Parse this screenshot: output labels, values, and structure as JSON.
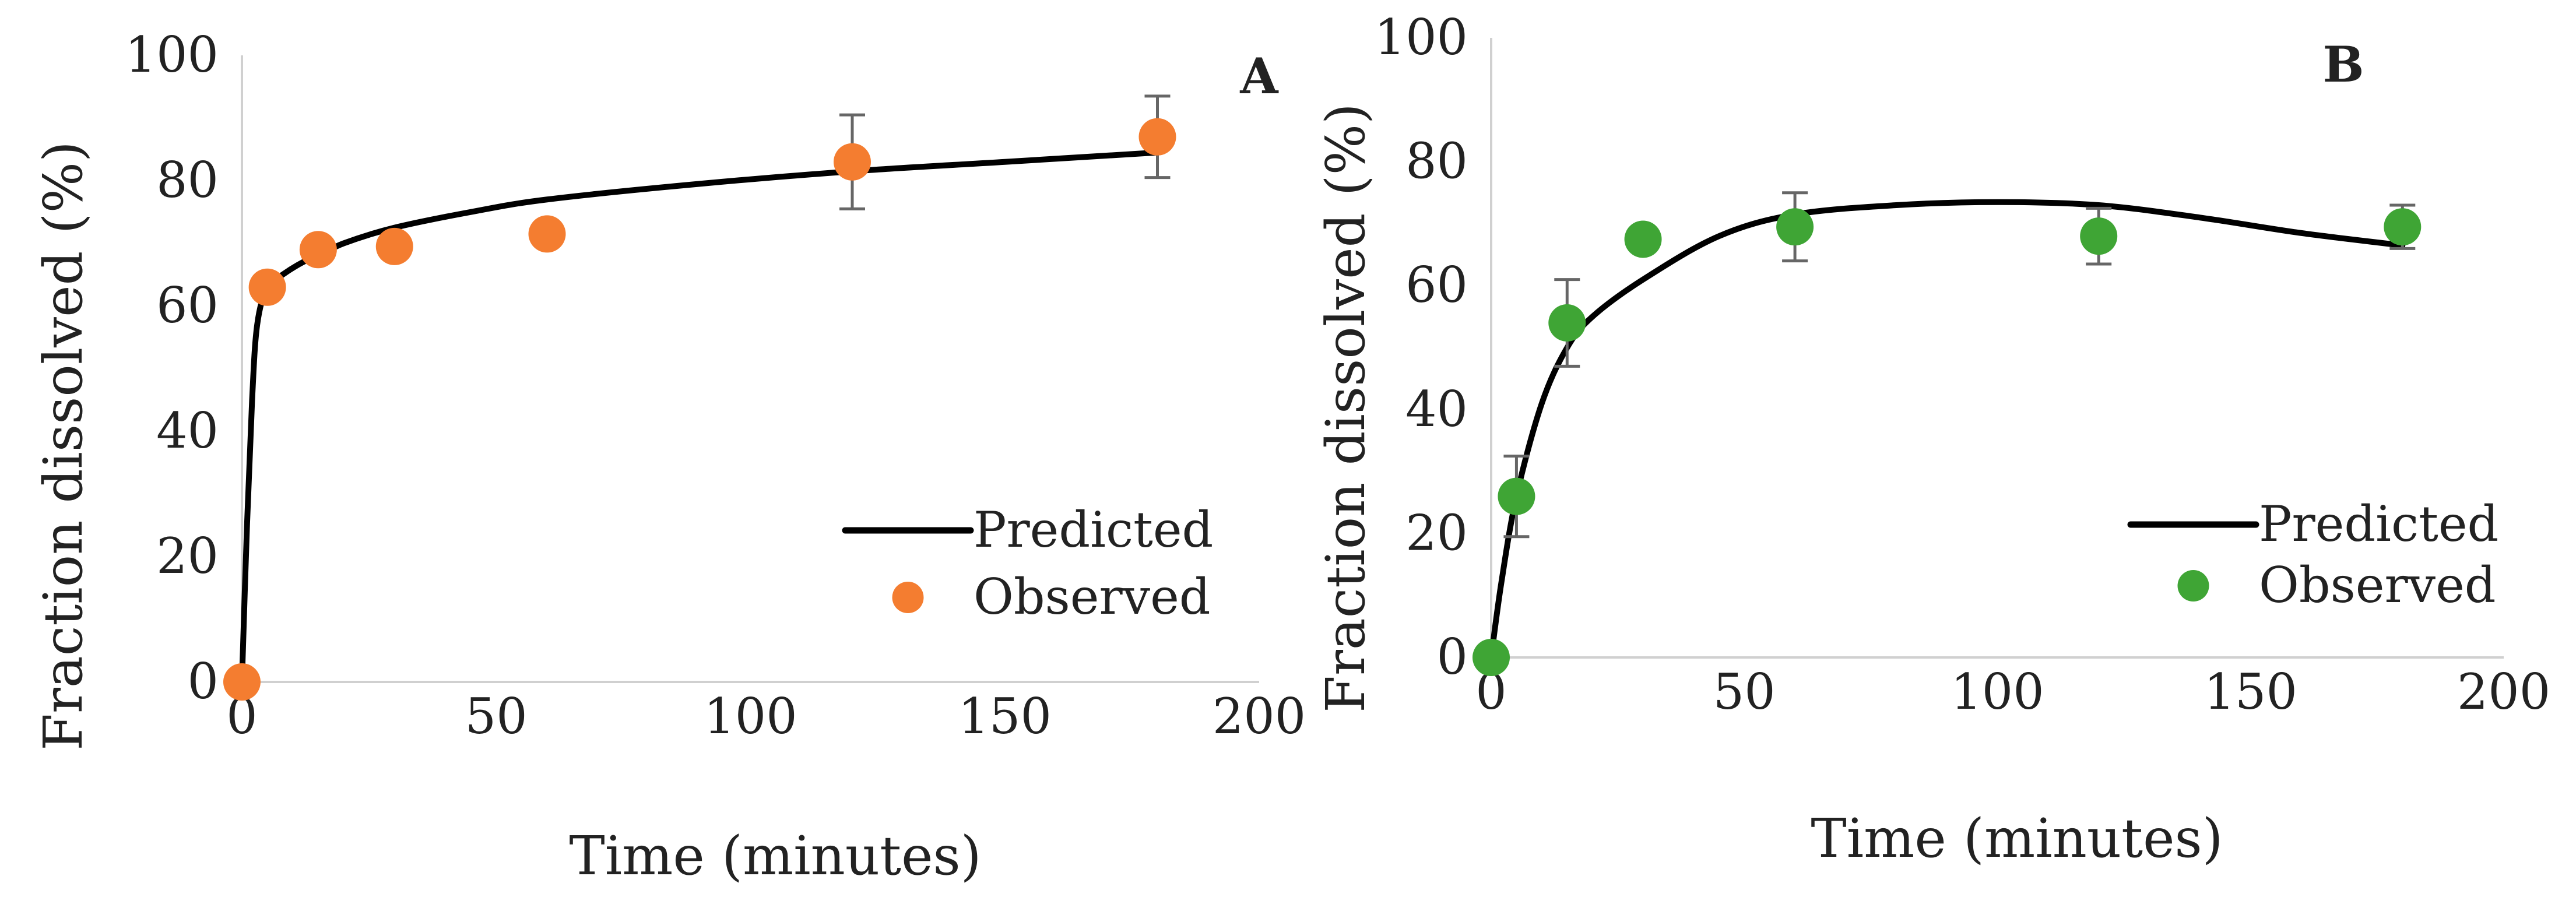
{
  "chart_data": [
    {
      "type": "scatter",
      "panel_label": "A",
      "xlabel": "Time (minutes)",
      "ylabel": "Fraction dissolved (%)",
      "xlim": [
        0,
        200
      ],
      "ylim": [
        0,
        100
      ],
      "x_ticks": [
        "0",
        "50",
        "100",
        "150",
        "200"
      ],
      "y_ticks": [
        "0",
        "20",
        "40",
        "60",
        "80",
        "100"
      ],
      "legend_position": "bottom-right",
      "legend": [
        "Predicted",
        "Observed"
      ],
      "series": [
        {
          "name": "Predicted",
          "kind": "line",
          "color": "#000000",
          "x": [
            0,
            1,
            2,
            3,
            5,
            8,
            12,
            15,
            20,
            30,
            45,
            60,
            90,
            120,
            150,
            180
          ],
          "y": [
            0,
            25,
            45,
            57,
            63,
            65,
            67,
            68,
            70,
            72.5,
            75,
            77,
            79.5,
            81.5,
            83,
            84.5
          ]
        },
        {
          "name": "Observed",
          "kind": "scatter",
          "color": "#F47D30",
          "x": [
            0,
            5,
            15,
            30,
            60,
            120,
            180
          ],
          "y": [
            0,
            63,
            69,
            69.5,
            71.5,
            83,
            87
          ],
          "error": [
            0,
            0,
            0,
            0,
            0,
            7.5,
            6.5
          ]
        }
      ]
    },
    {
      "type": "scatter",
      "panel_label": "B",
      "xlabel": "Time (minutes)",
      "ylabel": "Fraction dissolved (%)",
      "xlim": [
        0,
        200
      ],
      "ylim": [
        0,
        100
      ],
      "x_ticks": [
        "0",
        "50",
        "100",
        "150",
        "200"
      ],
      "y_ticks": [
        "0",
        "20",
        "40",
        "60",
        "80",
        "100"
      ],
      "legend_position": "bottom-right",
      "legend": [
        "Predicted",
        "Observed"
      ],
      "series": [
        {
          "name": "Predicted",
          "kind": "line",
          "color": "#000000",
          "x": [
            0,
            2,
            5,
            10,
            15,
            20,
            30,
            45,
            60,
            80,
            100,
            120,
            140,
            160,
            180
          ],
          "y": [
            0,
            12,
            26,
            41,
            50,
            55,
            61,
            68,
            71.5,
            73,
            73.5,
            73,
            71,
            68.5,
            66.5
          ]
        },
        {
          "name": "Observed",
          "kind": "scatter",
          "color": "#3FA535",
          "x": [
            0,
            5,
            15,
            30,
            60,
            120,
            180
          ],
          "y": [
            0,
            26,
            54,
            67.5,
            69.5,
            68,
            69.5
          ],
          "error": [
            0,
            6.5,
            7,
            0,
            5.5,
            4.5,
            3.5
          ]
        }
      ]
    }
  ]
}
